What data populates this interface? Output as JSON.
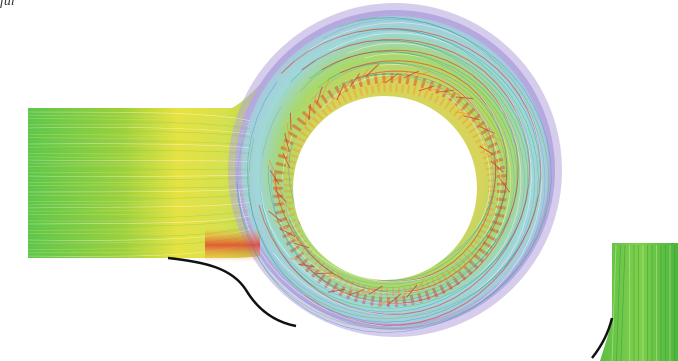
{
  "figure": {
    "caption_fragment": "ful",
    "colors": {
      "background": "#ffffff",
      "green": "#4fbf3a",
      "yellow": "#f0e63a",
      "orange": "#f39a2e",
      "red": "#e3342a",
      "cyan": "#9fdcdc",
      "blue": "#6aa7e0",
      "purple": "#a88fd6",
      "wall": "#111111",
      "hole": "#ffffff"
    }
  }
}
